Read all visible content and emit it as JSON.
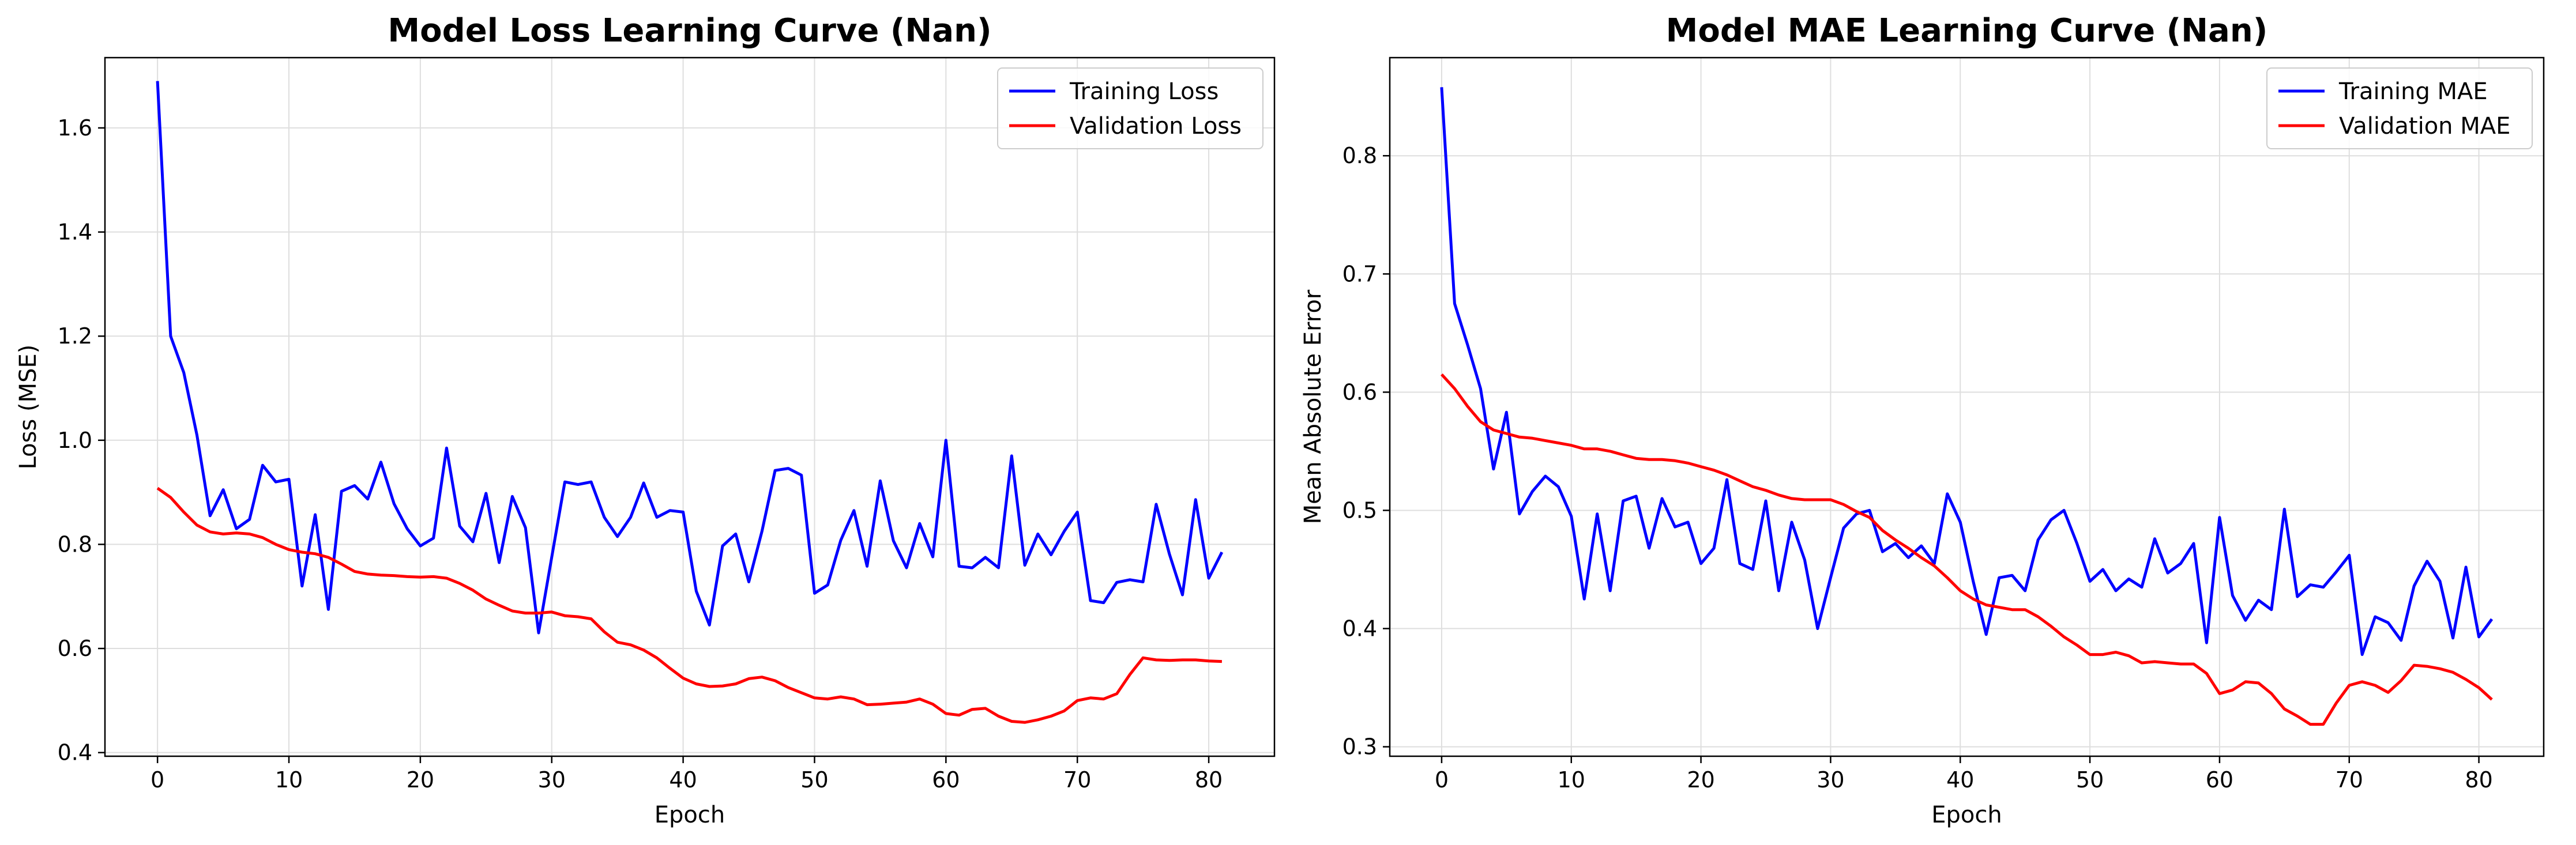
{
  "chart_data": [
    {
      "type": "line",
      "title": "Model Loss Learning Curve (Nan)",
      "xlabel": "Epoch",
      "ylabel": "Loss (MSE)",
      "xlim": [
        -4,
        85
      ],
      "ylim": [
        0.393,
        1.735
      ],
      "xticks": [
        0,
        10,
        20,
        30,
        40,
        50,
        60,
        70,
        80
      ],
      "yticks": [
        0.4,
        0.6,
        0.8,
        1.0,
        1.2,
        1.4,
        1.6
      ],
      "ytick_labels": [
        "0.4",
        "0.6",
        "0.8",
        "1.0",
        "1.2",
        "1.4",
        "1.6"
      ],
      "grid": true,
      "legend_position": "top-right",
      "series": [
        {
          "name": "Training Loss",
          "color": "#0000ff",
          "values": [
            1.69,
            1.2,
            1.13,
            1.01,
            0.855,
            0.905,
            0.83,
            0.848,
            0.952,
            0.92,
            0.925,
            0.72,
            0.857,
            0.675,
            0.902,
            0.913,
            0.887,
            0.958,
            0.878,
            0.83,
            0.797,
            0.812,
            0.985,
            0.835,
            0.805,
            0.898,
            0.765,
            0.892,
            0.832,
            0.63,
            0.775,
            0.92,
            0.915,
            0.92,
            0.852,
            0.815,
            0.852,
            0.918,
            0.852,
            0.865,
            0.862,
            0.71,
            0.645,
            0.797,
            0.82,
            0.728,
            0.825,
            0.942,
            0.946,
            0.933,
            0.706,
            0.722,
            0.808,
            0.865,
            0.758,
            0.922,
            0.807,
            0.755,
            0.84,
            0.776,
            1.0,
            0.758,
            0.755,
            0.775,
            0.755,
            0.97,
            0.76,
            0.82,
            0.78,
            0.825,
            0.862,
            0.692,
            0.688,
            0.727,
            0.732,
            0.728,
            0.877,
            0.782,
            0.703,
            0.886,
            0.735,
            0.785
          ]
        },
        {
          "name": "Validation Loss",
          "color": "#ff0000",
          "values": [
            0.908,
            0.89,
            0.862,
            0.837,
            0.824,
            0.82,
            0.822,
            0.82,
            0.813,
            0.8,
            0.79,
            0.785,
            0.782,
            0.775,
            0.762,
            0.748,
            0.743,
            0.741,
            0.74,
            0.738,
            0.737,
            0.738,
            0.735,
            0.725,
            0.712,
            0.695,
            0.683,
            0.672,
            0.668,
            0.668,
            0.67,
            0.663,
            0.661,
            0.657,
            0.632,
            0.612,
            0.607,
            0.597,
            0.582,
            0.562,
            0.543,
            0.532,
            0.527,
            0.528,
            0.532,
            0.542,
            0.545,
            0.538,
            0.525,
            0.515,
            0.505,
            0.503,
            0.507,
            0.503,
            0.492,
            0.493,
            0.495,
            0.497,
            0.503,
            0.493,
            0.475,
            0.472,
            0.483,
            0.485,
            0.47,
            0.46,
            0.458,
            0.463,
            0.47,
            0.48,
            0.5,
            0.505,
            0.503,
            0.513,
            0.55,
            0.582,
            0.578,
            0.577,
            0.578,
            0.578,
            0.576,
            0.575
          ]
        }
      ]
    },
    {
      "type": "line",
      "title": "Model MAE Learning Curve (Nan)",
      "xlabel": "Epoch",
      "ylabel": "Mean Absolute Error",
      "xlim": [
        -4,
        85
      ],
      "ylim": [
        0.292,
        0.883
      ],
      "xticks": [
        0,
        10,
        20,
        30,
        40,
        50,
        60,
        70,
        80
      ],
      "yticks": [
        0.3,
        0.4,
        0.5,
        0.6,
        0.7,
        0.8
      ],
      "ytick_labels": [
        "0.3",
        "0.4",
        "0.5",
        "0.6",
        "0.7",
        "0.8"
      ],
      "grid": true,
      "legend_position": "top-right",
      "series": [
        {
          "name": "Training MAE",
          "color": "#0000ff",
          "values": [
            0.858,
            0.675,
            0.64,
            0.603,
            0.535,
            0.583,
            0.497,
            0.516,
            0.529,
            0.52,
            0.495,
            0.425,
            0.497,
            0.432,
            0.508,
            0.512,
            0.468,
            0.51,
            0.486,
            0.49,
            0.455,
            0.468,
            0.526,
            0.455,
            0.45,
            0.508,
            0.432,
            0.49,
            0.458,
            0.4,
            0.443,
            0.485,
            0.497,
            0.5,
            0.465,
            0.472,
            0.46,
            0.47,
            0.455,
            0.514,
            0.49,
            0.44,
            0.395,
            0.443,
            0.445,
            0.432,
            0.475,
            0.492,
            0.5,
            0.472,
            0.44,
            0.45,
            0.432,
            0.442,
            0.435,
            0.476,
            0.447,
            0.455,
            0.472,
            0.388,
            0.494,
            0.428,
            0.407,
            0.424,
            0.416,
            0.501,
            0.427,
            0.437,
            0.435,
            0.448,
            0.462,
            0.378,
            0.41,
            0.405,
            0.39,
            0.436,
            0.457,
            0.44,
            0.392,
            0.452,
            0.393,
            0.408
          ]
        },
        {
          "name": "Validation MAE",
          "color": "#ff0000",
          "values": [
            0.615,
            0.603,
            0.588,
            0.575,
            0.568,
            0.565,
            0.562,
            0.561,
            0.559,
            0.557,
            0.555,
            0.552,
            0.552,
            0.55,
            0.547,
            0.544,
            0.543,
            0.543,
            0.542,
            0.54,
            0.537,
            0.534,
            0.53,
            0.525,
            0.52,
            0.517,
            0.513,
            0.51,
            0.509,
            0.509,
            0.509,
            0.505,
            0.499,
            0.494,
            0.483,
            0.475,
            0.468,
            0.46,
            0.453,
            0.443,
            0.432,
            0.425,
            0.42,
            0.418,
            0.416,
            0.416,
            0.41,
            0.402,
            0.393,
            0.386,
            0.378,
            0.378,
            0.38,
            0.377,
            0.371,
            0.372,
            0.371,
            0.37,
            0.37,
            0.362,
            0.345,
            0.348,
            0.355,
            0.354,
            0.345,
            0.332,
            0.326,
            0.319,
            0.319,
            0.337,
            0.352,
            0.355,
            0.352,
            0.346,
            0.356,
            0.369,
            0.368,
            0.366,
            0.363,
            0.357,
            0.35,
            0.34
          ]
        }
      ]
    }
  ]
}
